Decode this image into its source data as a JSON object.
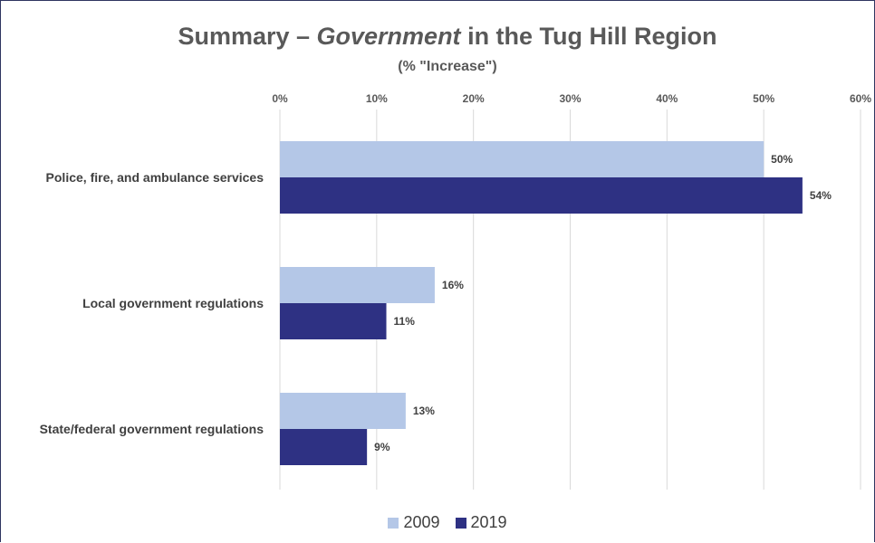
{
  "chart_data": {
    "type": "bar",
    "orientation": "horizontal",
    "title": {
      "prefix": "Summary – ",
      "emphasis": "Government",
      "suffix": " in the Tug Hill Region"
    },
    "subtitle": "(% \"Increase\")",
    "categories": [
      "Police, fire, and ambulance services",
      "Local government regulations",
      "State/federal government regulations"
    ],
    "series": [
      {
        "name": "2009",
        "values": [
          50,
          16,
          13
        ],
        "labels": [
          "50%",
          "16%",
          "13%"
        ],
        "color": "#b4c7e7"
      },
      {
        "name": "2019",
        "values": [
          54,
          11,
          9
        ],
        "labels": [
          "54%",
          "11%",
          "9%"
        ],
        "color": "#2e3183"
      }
    ],
    "xlim": [
      0,
      60
    ],
    "xticks": [
      "0%",
      "10%",
      "20%",
      "30%",
      "40%",
      "50%",
      "60%"
    ],
    "axis_position": "top",
    "grid": true,
    "legend_position": "bottom"
  }
}
